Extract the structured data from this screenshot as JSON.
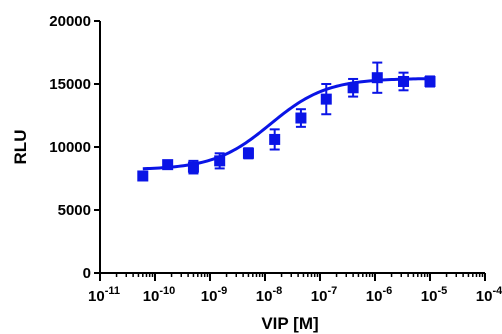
{
  "chart_data": {
    "type": "scatter",
    "title": "",
    "xlabel": "VIP [M]",
    "ylabel": "RLU",
    "x_scale": "log",
    "xlim": [
      1e-11,
      0.0001
    ],
    "ylim": [
      0,
      20000
    ],
    "y_ticks": [
      0,
      5000,
      10000,
      15000,
      20000
    ],
    "y_tick_labels": [
      "0",
      "5000",
      "10000",
      "15000",
      "20000"
    ],
    "x_tick_bases": [
      "10",
      "10",
      "10",
      "10",
      "10",
      "10",
      "10",
      "10"
    ],
    "x_tick_exponents": [
      "-11",
      "-10",
      "-9",
      "-8",
      "-7",
      "-6",
      "-5",
      "-4"
    ],
    "grid": false,
    "series": [
      {
        "color": "#0a14e6",
        "marker": "square",
        "fit": "sigmoidal dose-response curve",
        "points": [
          {
            "x": 6e-11,
            "y": 7700,
            "err": 200
          },
          {
            "x": 1.7e-10,
            "y": 8600,
            "err": 200
          },
          {
            "x": 5e-10,
            "y": 8400,
            "err": 500
          },
          {
            "x": 1.5e-09,
            "y": 8900,
            "err": 600
          },
          {
            "x": 5e-09,
            "y": 9500,
            "err": 400
          },
          {
            "x": 1.5e-08,
            "y": 10600,
            "err": 800
          },
          {
            "x": 4.5e-08,
            "y": 12300,
            "err": 700
          },
          {
            "x": 1.3e-07,
            "y": 13800,
            "err": 1200
          },
          {
            "x": 4e-07,
            "y": 14700,
            "err": 700
          },
          {
            "x": 1.1e-06,
            "y": 15500,
            "err": 1200
          },
          {
            "x": 3.3e-06,
            "y": 15200,
            "err": 700
          },
          {
            "x": 1e-05,
            "y": 15200,
            "err": 400
          }
        ]
      }
    ]
  }
}
